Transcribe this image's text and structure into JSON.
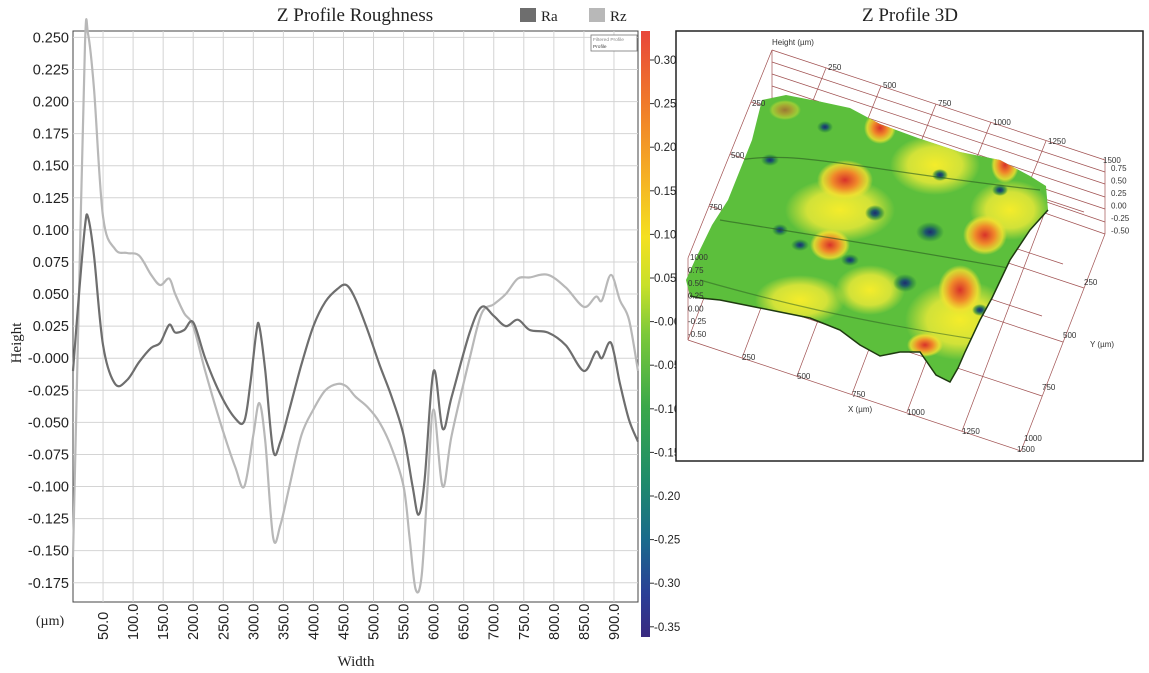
{
  "left_chart": {
    "title": "Z Profile Roughness",
    "legend": [
      {
        "label": "Ra",
        "color": "#6e6e6e"
      },
      {
        "label": "Rz",
        "color": "#b8b8b8"
      }
    ],
    "inset_legend": [
      "Filtered Profile",
      "Profile"
    ],
    "ylabel": "Height",
    "xlabel": "Width",
    "xunit": "(µm)"
  },
  "colorbar": {
    "ticks": [
      "0.30",
      "0.25",
      "0.20",
      "0.15",
      "0.10",
      "0.05",
      "-0.00",
      "-0.05",
      "-0.10",
      "-0.15",
      "-0.20",
      "-0.25",
      "-0.30",
      "-0.35"
    ],
    "colors": [
      "#e8473a",
      "#f07a2a",
      "#f5b025",
      "#f4e020",
      "#c8e02a",
      "#7cc93a",
      "#3aa84a",
      "#1f8c6a",
      "#1a6a8c",
      "#2a3e96",
      "#3a2a80"
    ]
  },
  "right_chart": {
    "title": "Z Profile 3D",
    "height_axis_label": "Height (µm)",
    "x_axis_label": "X (µm)",
    "y_axis_label": "Y (µm)",
    "top_ticks": [
      "250",
      "500",
      "750",
      "1000",
      "1250",
      "1500"
    ],
    "left_ticks": [
      "250",
      "500",
      "750",
      "1000"
    ],
    "z_ticks": [
      "0.75",
      "0.50",
      "0.25",
      "0.00",
      "-0.25",
      "-0.50"
    ],
    "left_z_ticks": [
      "0.75",
      "0.50",
      "0.25",
      "0.00",
      "-0.25",
      "-0.50"
    ],
    "x_ticks": [
      "250",
      "500",
      "750",
      "1000",
      "1250",
      "1500"
    ],
    "y_ticks": [
      "250",
      "500",
      "750",
      "1000"
    ]
  },
  "chart_data": {
    "type": "line",
    "title": "Z Profile Roughness",
    "xlabel": "Width",
    "ylabel": "Height",
    "x_unit": "µm",
    "xlim": [
      0,
      940
    ],
    "ylim": [
      -0.19,
      0.255
    ],
    "grid": true,
    "legend_position": "top-center",
    "x_ticks": [
      "50.0",
      "100.0",
      "150.0",
      "200.0",
      "250.0",
      "300.0",
      "350.0",
      "400.0",
      "450.0",
      "500.0",
      "550.0",
      "600.0",
      "650.0",
      "700.0",
      "750.0",
      "800.0",
      "850.0",
      "900.0"
    ],
    "y_ticks": [
      "0.250",
      "0.225",
      "0.200",
      "0.175",
      "0.150",
      "0.125",
      "0.100",
      "0.075",
      "0.050",
      "0.025",
      "-0.000",
      "-0.025",
      "-0.050",
      "-0.075",
      "-0.100",
      "-0.125",
      "-0.150",
      "-0.175"
    ],
    "series": [
      {
        "name": "Ra",
        "color": "#6e6e6e",
        "x": [
          0,
          10,
          20,
          25,
          35,
          50,
          70,
          90,
          110,
          130,
          145,
          160,
          170,
          185,
          200,
          220,
          245,
          270,
          285,
          295,
          305,
          310,
          320,
          333,
          345,
          360,
          380,
          400,
          420,
          440,
          455,
          470,
          490,
          510,
          530,
          550,
          565,
          575,
          585,
          600,
          615,
          630,
          660,
          680,
          700,
          720,
          740,
          760,
          790,
          820,
          850,
          870,
          880,
          895,
          910,
          925,
          940
        ],
        "y": [
          -0.01,
          0.05,
          0.103,
          0.11,
          0.08,
          0.01,
          -0.02,
          -0.017,
          -0.003,
          0.008,
          0.012,
          0.026,
          0.02,
          0.022,
          0.028,
          0.0,
          -0.028,
          -0.047,
          -0.049,
          -0.02,
          0.02,
          0.025,
          -0.01,
          -0.072,
          -0.065,
          -0.04,
          -0.005,
          0.025,
          0.044,
          0.054,
          0.057,
          0.046,
          0.022,
          -0.005,
          -0.03,
          -0.06,
          -0.1,
          -0.122,
          -0.095,
          -0.01,
          -0.055,
          -0.03,
          0.02,
          0.04,
          0.033,
          0.025,
          0.03,
          0.022,
          0.02,
          0.01,
          -0.01,
          0.005,
          0.0,
          0.012,
          -0.02,
          -0.048,
          -0.065
        ]
      },
      {
        "name": "Rz",
        "color": "#b8b8b8",
        "x": [
          0,
          10,
          20,
          25,
          35,
          50,
          70,
          90,
          110,
          130,
          145,
          160,
          170,
          185,
          200,
          220,
          245,
          270,
          285,
          300,
          310,
          320,
          333,
          345,
          360,
          380,
          400,
          420,
          440,
          455,
          470,
          490,
          510,
          530,
          550,
          560,
          570,
          580,
          590,
          600,
          615,
          630,
          660,
          680,
          700,
          720,
          740,
          760,
          790,
          820,
          850,
          870,
          880,
          895,
          910,
          925,
          940
        ],
        "y": [
          -0.155,
          0.05,
          0.245,
          0.253,
          0.21,
          0.11,
          0.085,
          0.082,
          0.08,
          0.065,
          0.057,
          0.062,
          0.05,
          0.035,
          0.025,
          -0.01,
          -0.05,
          -0.085,
          -0.1,
          -0.06,
          -0.035,
          -0.065,
          -0.14,
          -0.13,
          -0.1,
          -0.06,
          -0.04,
          -0.025,
          -0.02,
          -0.022,
          -0.03,
          -0.038,
          -0.05,
          -0.07,
          -0.1,
          -0.14,
          -0.18,
          -0.17,
          -0.1,
          -0.04,
          -0.1,
          -0.06,
          0.0,
          0.035,
          0.042,
          0.05,
          0.062,
          0.063,
          0.065,
          0.055,
          0.04,
          0.048,
          0.045,
          0.065,
          0.045,
          0.03,
          -0.01
        ]
      }
    ]
  }
}
